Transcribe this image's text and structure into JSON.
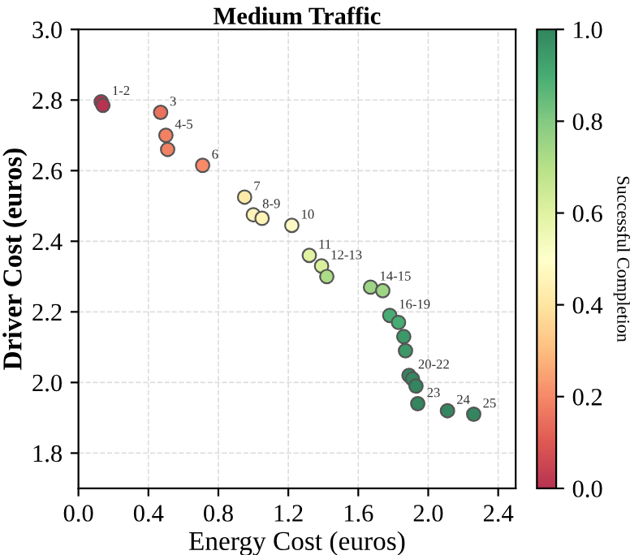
{
  "chart_data": {
    "type": "scatter",
    "title": "Medium Traffic",
    "xlabel": "Energy Cost (euros)",
    "ylabel": "Driver Cost (euros)",
    "clabel": "Successful Completion",
    "x": [
      0.13,
      0.14,
      0.47,
      0.5,
      0.51,
      0.71,
      0.95,
      1.0,
      1.05,
      1.22,
      1.32,
      1.39,
      1.42,
      1.67,
      1.74,
      1.78,
      1.83,
      1.86,
      1.87,
      1.89,
      1.91,
      1.93,
      1.94,
      2.11,
      2.26
    ],
    "values": [
      2.795,
      2.785,
      2.765,
      2.7,
      2.66,
      2.615,
      2.525,
      2.475,
      2.465,
      2.445,
      2.36,
      2.33,
      2.3,
      2.27,
      2.26,
      2.19,
      2.17,
      2.13,
      2.09,
      2.02,
      2.01,
      1.99,
      1.94,
      1.92,
      1.91
    ],
    "cvalues": [
      0.0,
      0.0,
      0.15,
      0.18,
      0.18,
      0.2,
      0.42,
      0.45,
      0.45,
      0.48,
      0.6,
      0.62,
      0.72,
      0.75,
      0.75,
      0.9,
      0.9,
      0.95,
      0.95,
      1.0,
      1.0,
      1.0,
      1.0,
      1.0,
      1.0
    ],
    "clim": [
      0.0,
      1.0
    ],
    "cticks": [
      {
        "value": 0,
        "label": "0.0"
      },
      0.2,
      0.4,
      0.6,
      0.8,
      {
        "value": 1,
        "label": "1.0"
      }
    ],
    "xlim": [
      0,
      2.5
    ],
    "xticks": [
      {
        "value": 0,
        "label": "0.0"
      },
      0.4,
      0.8,
      1.2,
      1.6,
      {
        "value": 2,
        "label": "2.0"
      },
      2.4
    ],
    "ylim": [
      1.7,
      3.0
    ],
    "yticks": [
      1.8,
      {
        "value": 2,
        "label": "2.0"
      },
      2.2,
      2.4,
      2.6,
      2.8,
      {
        "value": 3,
        "label": "3.0"
      }
    ],
    "grid": true,
    "marker": "circle",
    "annotations": [
      {
        "text": "1-2",
        "x": 0.14,
        "y": 2.795
      },
      {
        "text": "3",
        "x": 0.47,
        "y": 2.765
      },
      {
        "text": "4-5",
        "x": 0.5,
        "y": 2.7
      },
      {
        "text": "6",
        "x": 0.71,
        "y": 2.615
      },
      {
        "text": "7",
        "x": 0.95,
        "y": 2.525
      },
      {
        "text": "8-9",
        "x": 1.0,
        "y": 2.475
      },
      {
        "text": "10",
        "x": 1.22,
        "y": 2.445
      },
      {
        "text": "11",
        "x": 1.32,
        "y": 2.36
      },
      {
        "text": "12-13",
        "x": 1.39,
        "y": 2.33
      },
      {
        "text": "14-15",
        "x": 1.67,
        "y": 2.27
      },
      {
        "text": "16-19",
        "x": 1.78,
        "y": 2.19
      },
      {
        "text": "20-22",
        "x": 1.89,
        "y": 2.02
      },
      {
        "text": "23",
        "x": 1.94,
        "y": 1.94
      },
      {
        "text": "24",
        "x": 2.11,
        "y": 1.92
      },
      {
        "text": "25",
        "x": 2.26,
        "y": 1.91
      }
    ]
  }
}
